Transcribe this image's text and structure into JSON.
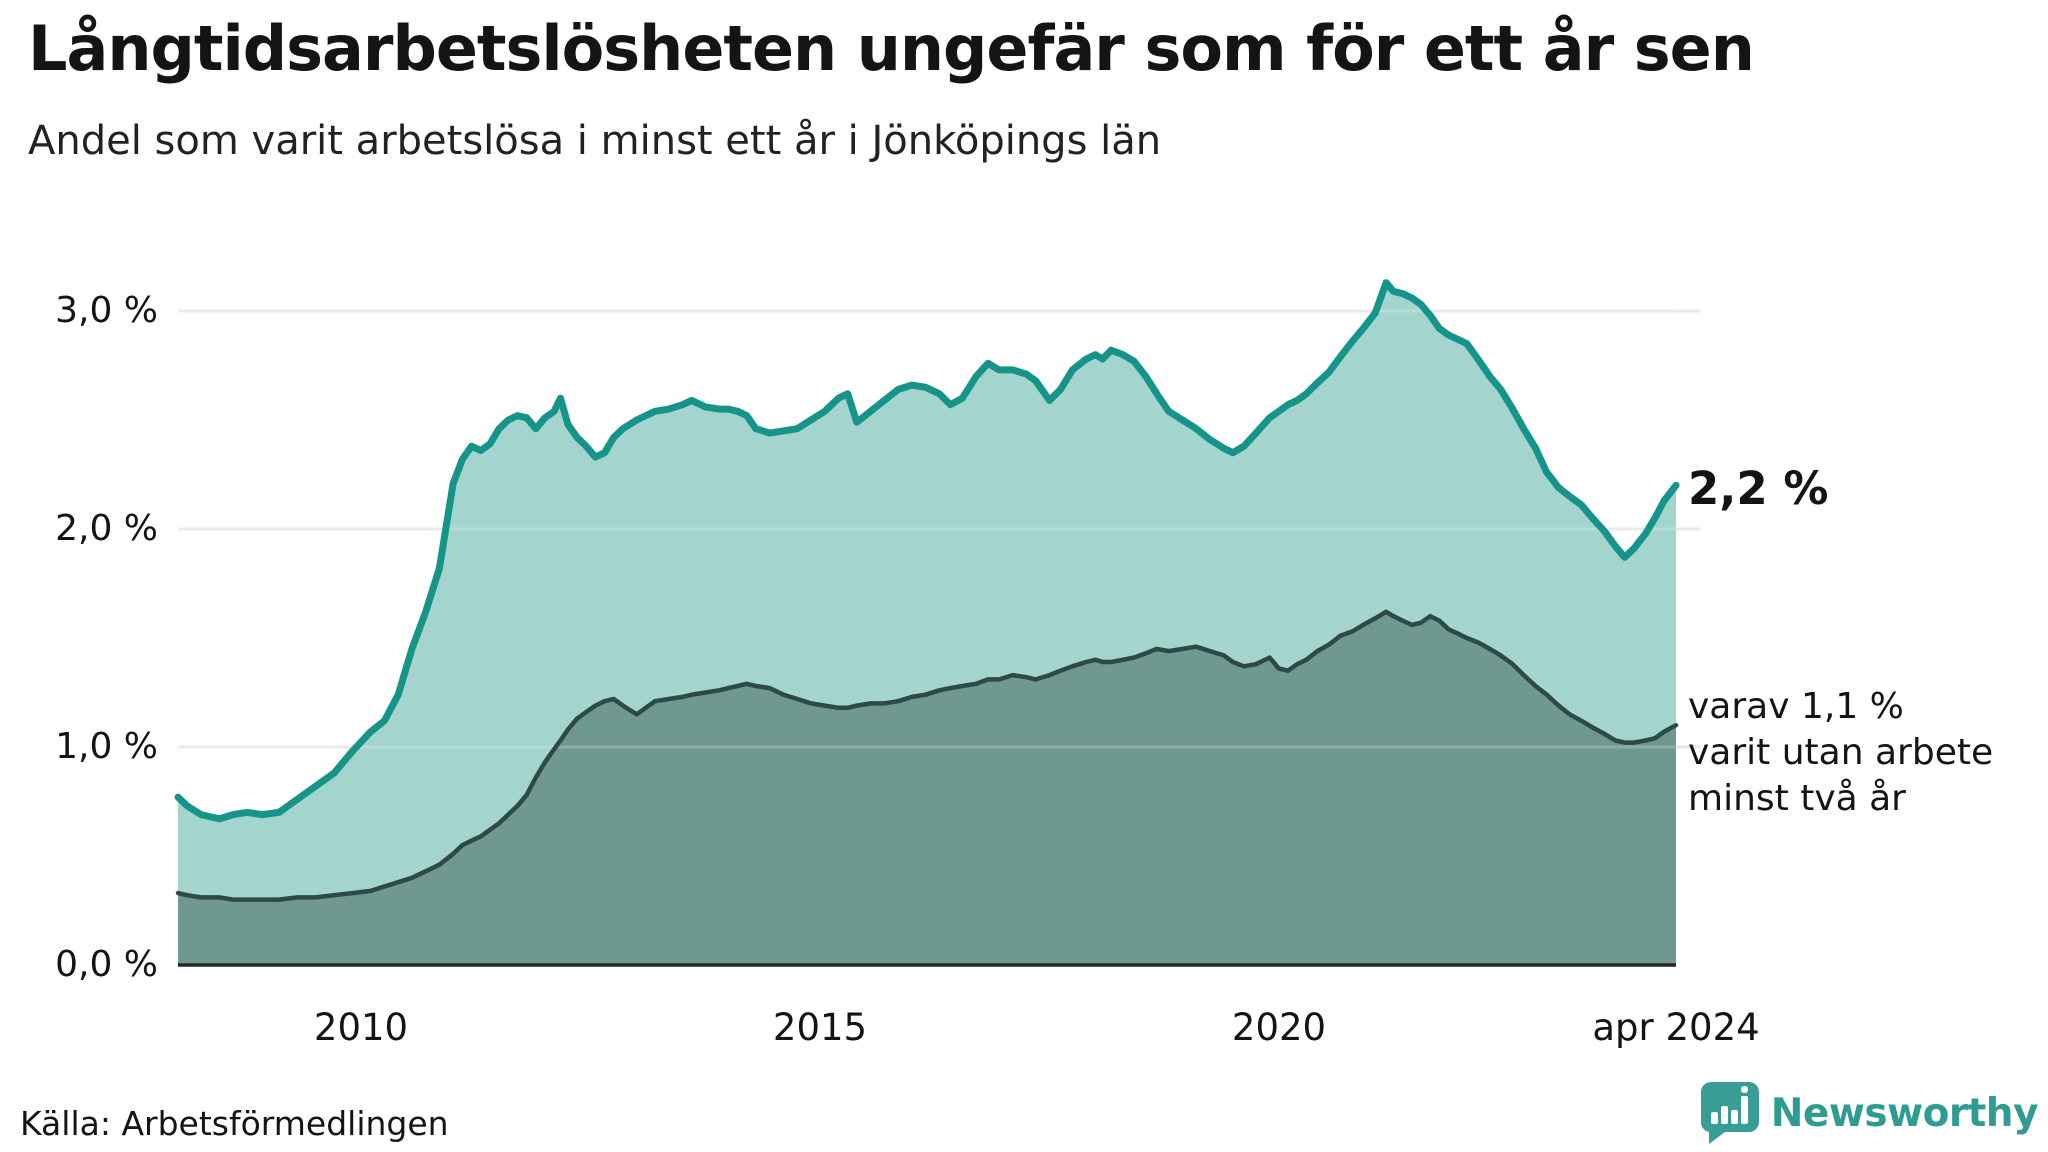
{
  "chart_data": {
    "type": "area",
    "title": "Långtidsarbetslösheten ungefär som för ett år sen",
    "subtitle": "Andel som varit arbetslösa i minst ett år i Jönköpings län",
    "source": "Källa: Arbetsförmedlingen",
    "unit": "%",
    "grid": "horizontal",
    "legend": "end-of-line annotations",
    "xlim": [
      2008.0,
      2024.33
    ],
    "ylim": [
      0,
      3.3
    ],
    "y_ticks": [
      {
        "label": "3,0 %",
        "value": 3.0
      },
      {
        "label": "2,0 %",
        "value": 2.0
      },
      {
        "label": "1,0 %",
        "value": 1.0
      },
      {
        "label": "0,0 %",
        "value": 0.0
      }
    ],
    "x_ticks": [
      {
        "label": "2010",
        "year": 2010
      },
      {
        "label": "2015",
        "year": 2015
      },
      {
        "label": "2020",
        "year": 2020
      },
      {
        "label": "apr 2024",
        "year": 2024.33
      }
    ],
    "annotations": {
      "total_end_label": "2,2 %",
      "two_plus_note": [
        "varav 1,1 %",
        "varit utan arbete",
        "minst två år"
      ]
    },
    "colors": {
      "total_line": "#169489",
      "total_fill": "#a3d4cd",
      "two_plus_line": "#2d4a45",
      "two_plus_fill": "#6f9890",
      "gridline": "#e6e6e6",
      "gridline_overlay": "rgba(255,255,255,0.22)",
      "axis": "#262626",
      "text": "#141414"
    },
    "years": [
      2008.0,
      2008.1,
      2008.25,
      2008.45,
      2008.6,
      2008.75,
      2008.92,
      2009.1,
      2009.3,
      2009.5,
      2009.7,
      2009.9,
      2010.1,
      2010.25,
      2010.4,
      2010.55,
      2010.7,
      2010.85,
      2011.0,
      2011.1,
      2011.2,
      2011.3,
      2011.4,
      2011.5,
      2011.6,
      2011.7,
      2011.8,
      2011.9,
      2012.0,
      2012.1,
      2012.17,
      2012.25,
      2012.35,
      2012.45,
      2012.55,
      2012.65,
      2012.75,
      2012.85,
      2013.0,
      2013.1,
      2013.2,
      2013.35,
      2013.5,
      2013.6,
      2013.75,
      2013.9,
      2014.0,
      2014.1,
      2014.2,
      2014.3,
      2014.45,
      2014.6,
      2014.75,
      2014.9,
      2015.05,
      2015.2,
      2015.3,
      2015.4,
      2015.55,
      2015.7,
      2015.85,
      2016.0,
      2016.15,
      2016.3,
      2016.42,
      2016.55,
      2016.7,
      2016.83,
      2016.95,
      2017.1,
      2017.25,
      2017.35,
      2017.5,
      2017.62,
      2017.75,
      2017.9,
      2018.0,
      2018.08,
      2018.17,
      2018.3,
      2018.42,
      2018.55,
      2018.67,
      2018.8,
      2018.95,
      2019.1,
      2019.25,
      2019.4,
      2019.5,
      2019.62,
      2019.75,
      2019.9,
      2020.0,
      2020.1,
      2020.2,
      2020.3,
      2020.42,
      2020.55,
      2020.67,
      2020.8,
      2020.92,
      2021.05,
      2021.17,
      2021.25,
      2021.35,
      2021.45,
      2021.55,
      2021.65,
      2021.75,
      2021.85,
      2021.95,
      2022.05,
      2022.17,
      2022.3,
      2022.42,
      2022.55,
      2022.67,
      2022.8,
      2022.92,
      2023.05,
      2023.17,
      2023.3,
      2023.42,
      2023.55,
      2023.67,
      2023.77,
      2023.87,
      2024.0,
      2024.1,
      2024.2,
      2024.33
    ],
    "series": [
      {
        "name": "Andel arbetslösa minst ett år",
        "end_value": 2.2,
        "values": [
          0.77,
          0.73,
          0.69,
          0.67,
          0.69,
          0.7,
          0.69,
          0.7,
          0.76,
          0.82,
          0.88,
          0.98,
          1.07,
          1.12,
          1.24,
          1.45,
          1.62,
          1.82,
          2.21,
          2.32,
          2.38,
          2.36,
          2.39,
          2.46,
          2.5,
          2.52,
          2.51,
          2.46,
          2.51,
          2.54,
          2.6,
          2.48,
          2.42,
          2.38,
          2.33,
          2.35,
          2.42,
          2.46,
          2.5,
          2.52,
          2.54,
          2.55,
          2.57,
          2.59,
          2.56,
          2.55,
          2.55,
          2.54,
          2.52,
          2.46,
          2.44,
          2.45,
          2.46,
          2.5,
          2.54,
          2.6,
          2.62,
          2.49,
          2.54,
          2.59,
          2.64,
          2.66,
          2.65,
          2.62,
          2.57,
          2.6,
          2.7,
          2.76,
          2.73,
          2.73,
          2.71,
          2.68,
          2.59,
          2.64,
          2.73,
          2.78,
          2.8,
          2.78,
          2.82,
          2.8,
          2.77,
          2.7,
          2.62,
          2.54,
          2.5,
          2.46,
          2.41,
          2.37,
          2.35,
          2.38,
          2.44,
          2.51,
          2.54,
          2.57,
          2.59,
          2.62,
          2.67,
          2.72,
          2.79,
          2.86,
          2.92,
          2.99,
          3.13,
          3.09,
          3.08,
          3.06,
          3.03,
          2.98,
          2.92,
          2.89,
          2.87,
          2.85,
          2.78,
          2.7,
          2.64,
          2.55,
          2.46,
          2.37,
          2.26,
          2.19,
          2.15,
          2.11,
          2.05,
          1.99,
          1.92,
          1.87,
          1.91,
          1.98,
          2.05,
          2.13,
          2.2
        ]
      },
      {
        "name": "Varav utan arbete minst två år",
        "end_value": 1.1,
        "values": [
          0.33,
          0.32,
          0.31,
          0.31,
          0.3,
          0.3,
          0.3,
          0.3,
          0.31,
          0.31,
          0.32,
          0.33,
          0.34,
          0.36,
          0.38,
          0.4,
          0.43,
          0.46,
          0.51,
          0.55,
          0.57,
          0.59,
          0.62,
          0.65,
          0.69,
          0.73,
          0.78,
          0.86,
          0.93,
          0.99,
          1.03,
          1.08,
          1.13,
          1.16,
          1.19,
          1.21,
          1.22,
          1.19,
          1.15,
          1.18,
          1.21,
          1.22,
          1.23,
          1.24,
          1.25,
          1.26,
          1.27,
          1.28,
          1.29,
          1.28,
          1.27,
          1.24,
          1.22,
          1.2,
          1.19,
          1.18,
          1.18,
          1.19,
          1.2,
          1.2,
          1.21,
          1.23,
          1.24,
          1.26,
          1.27,
          1.28,
          1.29,
          1.31,
          1.31,
          1.33,
          1.32,
          1.31,
          1.33,
          1.35,
          1.37,
          1.39,
          1.4,
          1.39,
          1.39,
          1.4,
          1.41,
          1.43,
          1.45,
          1.44,
          1.45,
          1.46,
          1.44,
          1.42,
          1.39,
          1.37,
          1.38,
          1.41,
          1.36,
          1.35,
          1.38,
          1.4,
          1.44,
          1.47,
          1.51,
          1.53,
          1.56,
          1.59,
          1.62,
          1.6,
          1.58,
          1.56,
          1.57,
          1.6,
          1.58,
          1.54,
          1.52,
          1.5,
          1.48,
          1.45,
          1.42,
          1.38,
          1.33,
          1.28,
          1.24,
          1.19,
          1.15,
          1.12,
          1.09,
          1.06,
          1.03,
          1.02,
          1.02,
          1.03,
          1.04,
          1.07,
          1.1
        ]
      }
    ]
  },
  "logo": {
    "brand": "Newsworthy",
    "icon": "newsworthy-bar-chart-bubble-icon",
    "brand_color": "#2f9c92",
    "icon_color": "#3a9d95"
  }
}
